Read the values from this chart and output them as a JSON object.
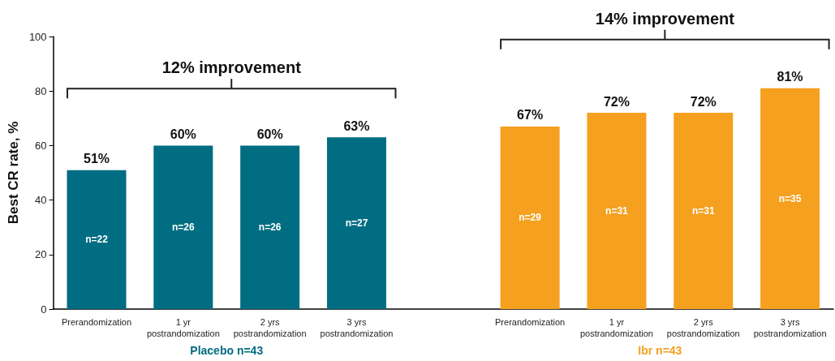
{
  "chart_data": {
    "type": "bar",
    "ylabel": "Best CR rate, %",
    "categories": [
      "Prerandomization",
      "1 yr\npostrandomization",
      "2 yrs\npostrandomization",
      "3 yrs\npostrandomization",
      null,
      "Prerandomization",
      "1 yr\npostrandomization",
      "2 yrs\npostrandomization",
      "3 yrs\npostrandomization"
    ],
    "series": [
      {
        "name": "Placebo n=43",
        "color": "#006d82",
        "values": [
          51,
          60,
          60,
          63,
          null,
          null,
          null,
          null,
          null
        ],
        "value_labels": [
          "51%",
          "60%",
          "60%",
          "63%",
          null,
          null,
          null,
          null,
          null
        ]
      },
      {
        "name": "Ibr n=43",
        "color": "#f5a01f",
        "values": [
          null,
          null,
          null,
          null,
          null,
          67,
          72,
          72,
          81
        ],
        "value_labels": [
          null,
          null,
          null,
          null,
          null,
          "67%",
          "72%",
          "72%",
          "81%"
        ]
      }
    ],
    "ylim": [
      0,
      100
    ],
    "yticks": [
      0,
      20,
      40,
      60,
      80,
      100
    ],
    "grid": false,
    "legend": false,
    "annotations": [
      "12% improvement",
      "14% improvement",
      "n=22",
      "n=26",
      "n=26",
      "n=27",
      "n=29",
      "n=31",
      "n=31",
      "n=35"
    ]
  }
}
